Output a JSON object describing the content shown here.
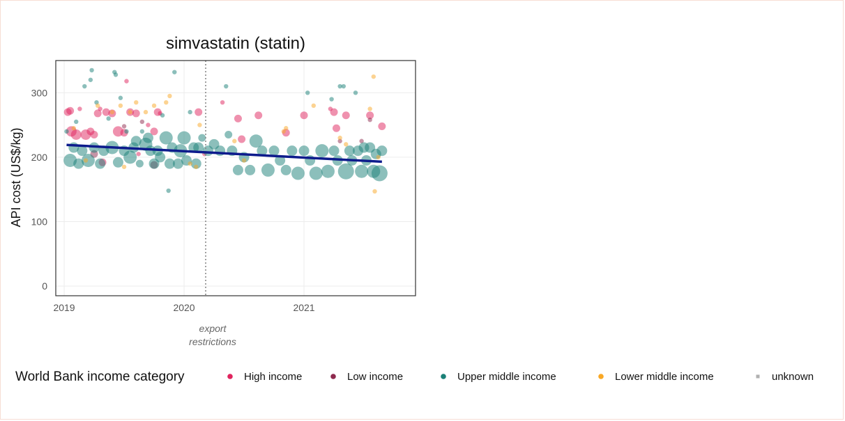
{
  "chart_data": {
    "type": "scatter",
    "title": "simvastatin (statin)",
    "ylabel": "API cost (US$/kg)",
    "xlabel": "",
    "xlim": [
      2018.93,
      2021.93
    ],
    "ylim": [
      -15,
      350
    ],
    "x_ticks": [
      2019,
      2020,
      2021
    ],
    "x_tick_labels": [
      "2019",
      "2020",
      "2021"
    ],
    "y_ticks": [
      0,
      100,
      200,
      300
    ],
    "y_tick_labels": [
      "0",
      "100",
      "200",
      "300"
    ],
    "grid": true,
    "legend_position": "bottom",
    "vline": {
      "x": 2020.18,
      "label_line1": "export",
      "label_line2": "restrictions"
    },
    "trend_line": {
      "x": [
        2019.02,
        2021.65
      ],
      "y": [
        219,
        193
      ],
      "color": "#0d1b8c"
    },
    "legend_title": "World Bank income category",
    "series": [
      {
        "name": "High income",
        "color": "#e0245e",
        "points": [
          [
            2019.03,
            270,
            2
          ],
          [
            2019.05,
            272,
            2
          ],
          [
            2019.06,
            240,
            3
          ],
          [
            2019.1,
            235,
            3
          ],
          [
            2019.13,
            275,
            1
          ],
          [
            2019.18,
            235,
            3
          ],
          [
            2019.22,
            240,
            2
          ],
          [
            2019.25,
            235,
            2
          ],
          [
            2019.28,
            268,
            2
          ],
          [
            2019.3,
            275,
            1
          ],
          [
            2019.32,
            192,
            2
          ],
          [
            2019.35,
            270,
            2
          ],
          [
            2019.4,
            268,
            2
          ],
          [
            2019.45,
            240,
            3
          ],
          [
            2019.5,
            238,
            2
          ],
          [
            2019.52,
            318,
            1
          ],
          [
            2019.55,
            270,
            2
          ],
          [
            2019.6,
            268,
            2
          ],
          [
            2019.62,
            205,
            1
          ],
          [
            2019.7,
            250,
            1
          ],
          [
            2019.75,
            240,
            2
          ],
          [
            2019.78,
            270,
            2
          ],
          [
            2019.8,
            268,
            1
          ],
          [
            2020.12,
            270,
            2
          ],
          [
            2020.17,
            205,
            1
          ],
          [
            2020.32,
            285,
            1
          ],
          [
            2020.45,
            260,
            2
          ],
          [
            2020.48,
            228,
            2
          ],
          [
            2020.62,
            265,
            2
          ],
          [
            2020.85,
            238,
            2
          ],
          [
            2021.0,
            265,
            2
          ],
          [
            2021.22,
            275,
            1
          ],
          [
            2021.25,
            270,
            2
          ],
          [
            2021.27,
            245,
            2
          ],
          [
            2021.35,
            265,
            2
          ],
          [
            2021.55,
            265,
            2
          ],
          [
            2021.65,
            248,
            2
          ]
        ]
      },
      {
        "name": "Low income",
        "color": "#8e2a4e",
        "points": [
          [
            2019.25,
            205,
            2
          ],
          [
            2019.5,
            248,
            1
          ],
          [
            2019.65,
            255,
            1
          ],
          [
            2019.75,
            188,
            2
          ],
          [
            2021.3,
            225,
            1
          ],
          [
            2021.48,
            225,
            1
          ],
          [
            2021.55,
            258,
            1
          ]
        ]
      },
      {
        "name": "Upper middle income",
        "color": "#1a8077",
        "points": [
          [
            2019.02,
            240,
            1
          ],
          [
            2019.05,
            195,
            4
          ],
          [
            2019.08,
            215,
            3
          ],
          [
            2019.1,
            255,
            1
          ],
          [
            2019.12,
            190,
            3
          ],
          [
            2019.15,
            210,
            3
          ],
          [
            2019.17,
            310,
            1
          ],
          [
            2019.2,
            195,
            4
          ],
          [
            2019.22,
            320,
            1
          ],
          [
            2019.23,
            335,
            1
          ],
          [
            2019.25,
            215,
            3
          ],
          [
            2019.27,
            285,
            1
          ],
          [
            2019.3,
            190,
            3
          ],
          [
            2019.33,
            210,
            3
          ],
          [
            2019.37,
            260,
            1
          ],
          [
            2019.4,
            215,
            4
          ],
          [
            2019.42,
            332,
            1
          ],
          [
            2019.43,
            328,
            1
          ],
          [
            2019.45,
            192,
            3
          ],
          [
            2019.47,
            292,
            1
          ],
          [
            2019.5,
            210,
            3
          ],
          [
            2019.52,
            240,
            1
          ],
          [
            2019.55,
            200,
            4
          ],
          [
            2019.58,
            215,
            3
          ],
          [
            2019.6,
            225,
            3
          ],
          [
            2019.63,
            190,
            2
          ],
          [
            2019.65,
            240,
            1
          ],
          [
            2019.68,
            220,
            4
          ],
          [
            2019.7,
            230,
            3
          ],
          [
            2019.72,
            210,
            3
          ],
          [
            2019.75,
            190,
            3
          ],
          [
            2019.78,
            210,
            3
          ],
          [
            2019.8,
            200,
            3
          ],
          [
            2019.82,
            265,
            1
          ],
          [
            2019.85,
            230,
            4
          ],
          [
            2019.87,
            148,
            1
          ],
          [
            2019.88,
            190,
            3
          ],
          [
            2019.9,
            215,
            3
          ],
          [
            2019.92,
            332,
            1
          ],
          [
            2019.95,
            190,
            3
          ],
          [
            2019.97,
            210,
            4
          ],
          [
            2020.0,
            230,
            4
          ],
          [
            2020.02,
            195,
            3
          ],
          [
            2020.05,
            270,
            1
          ],
          [
            2020.08,
            215,
            3
          ],
          [
            2020.1,
            190,
            3
          ],
          [
            2020.12,
            215,
            3
          ],
          [
            2020.15,
            230,
            2
          ],
          [
            2020.2,
            210,
            3
          ],
          [
            2020.25,
            220,
            3
          ],
          [
            2020.3,
            210,
            3
          ],
          [
            2020.35,
            310,
            1
          ],
          [
            2020.37,
            235,
            2
          ],
          [
            2020.4,
            210,
            3
          ],
          [
            2020.45,
            180,
            3
          ],
          [
            2020.5,
            200,
            3
          ],
          [
            2020.55,
            180,
            3
          ],
          [
            2020.6,
            225,
            4
          ],
          [
            2020.65,
            210,
            3
          ],
          [
            2020.7,
            180,
            4
          ],
          [
            2020.75,
            210,
            3
          ],
          [
            2020.8,
            195,
            3
          ],
          [
            2020.85,
            180,
            3
          ],
          [
            2020.9,
            210,
            3
          ],
          [
            2020.95,
            175,
            4
          ],
          [
            2021.0,
            210,
            3
          ],
          [
            2021.03,
            300,
            1
          ],
          [
            2021.05,
            195,
            3
          ],
          [
            2021.1,
            175,
            4
          ],
          [
            2021.15,
            210,
            4
          ],
          [
            2021.2,
            178,
            4
          ],
          [
            2021.23,
            290,
            1
          ],
          [
            2021.25,
            210,
            3
          ],
          [
            2021.28,
            195,
            3
          ],
          [
            2021.3,
            310,
            1
          ],
          [
            2021.33,
            310,
            1
          ],
          [
            2021.35,
            178,
            5
          ],
          [
            2021.38,
            210,
            3
          ],
          [
            2021.4,
            195,
            3
          ],
          [
            2021.43,
            300,
            1
          ],
          [
            2021.45,
            210,
            3
          ],
          [
            2021.48,
            178,
            4
          ],
          [
            2021.5,
            215,
            3
          ],
          [
            2021.52,
            195,
            3
          ],
          [
            2021.55,
            215,
            3
          ],
          [
            2021.58,
            178,
            4
          ],
          [
            2021.6,
            205,
            3
          ],
          [
            2021.63,
            175,
            5
          ],
          [
            2021.65,
            210,
            3
          ]
        ]
      },
      {
        "name": "Lower middle income",
        "color": "#f9a825",
        "points": [
          [
            2019.08,
            245,
            1
          ],
          [
            2019.18,
            195,
            1
          ],
          [
            2019.28,
            280,
            1
          ],
          [
            2019.4,
            270,
            1
          ],
          [
            2019.47,
            280,
            1
          ],
          [
            2019.5,
            185,
            1
          ],
          [
            2019.55,
            270,
            1
          ],
          [
            2019.6,
            285,
            1
          ],
          [
            2019.68,
            270,
            1
          ],
          [
            2019.75,
            280,
            1
          ],
          [
            2019.85,
            285,
            1
          ],
          [
            2019.88,
            295,
            1
          ],
          [
            2020.05,
            190,
            1
          ],
          [
            2020.1,
            185,
            1
          ],
          [
            2020.13,
            250,
            1
          ],
          [
            2020.42,
            225,
            1
          ],
          [
            2020.5,
            195,
            1
          ],
          [
            2020.83,
            240,
            1
          ],
          [
            2020.85,
            245,
            1
          ],
          [
            2021.08,
            280,
            1
          ],
          [
            2021.3,
            230,
            1
          ],
          [
            2021.35,
            220,
            1
          ],
          [
            2021.55,
            275,
            1
          ],
          [
            2021.58,
            325,
            1
          ],
          [
            2021.59,
            147,
            1
          ],
          [
            2021.62,
            200,
            1
          ]
        ]
      },
      {
        "name": "unknown",
        "color": "#b0b0b0",
        "points": []
      }
    ]
  }
}
